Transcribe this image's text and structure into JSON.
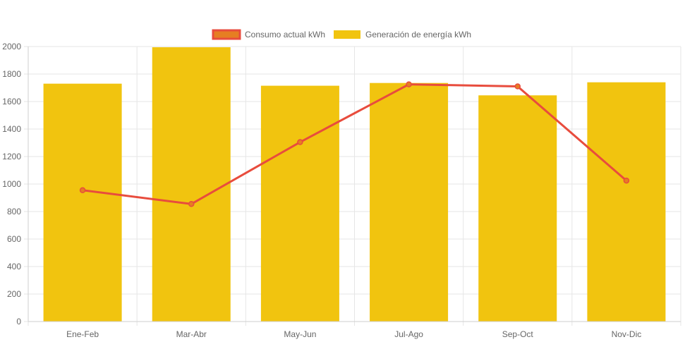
{
  "chart_data": {
    "type": "bar",
    "categories": [
      "Ene-Feb",
      "Mar-Abr",
      "May-Jun",
      "Jul-Ago",
      "Sep-Oct",
      "Nov-Dic"
    ],
    "series": [
      {
        "name": "Consumo actual kWh",
        "type": "line",
        "values": [
          955,
          855,
          1305,
          1725,
          1710,
          1025
        ],
        "color": "#e84c3d",
        "fill": "#e67e22"
      },
      {
        "name": "Generación de energía kWh",
        "type": "bar",
        "values": [
          1730,
          1995,
          1715,
          1735,
          1645,
          1740
        ],
        "color": "#f1c40f"
      }
    ],
    "yticks": [
      "0",
      "200",
      "400",
      "600",
      "800",
      "1000",
      "1200",
      "1400",
      "1600",
      "1800",
      "2000"
    ],
    "ylim": [
      0,
      2000
    ],
    "grid": true,
    "legend_position": "top-center",
    "title": "",
    "xlabel": "",
    "ylabel": ""
  }
}
